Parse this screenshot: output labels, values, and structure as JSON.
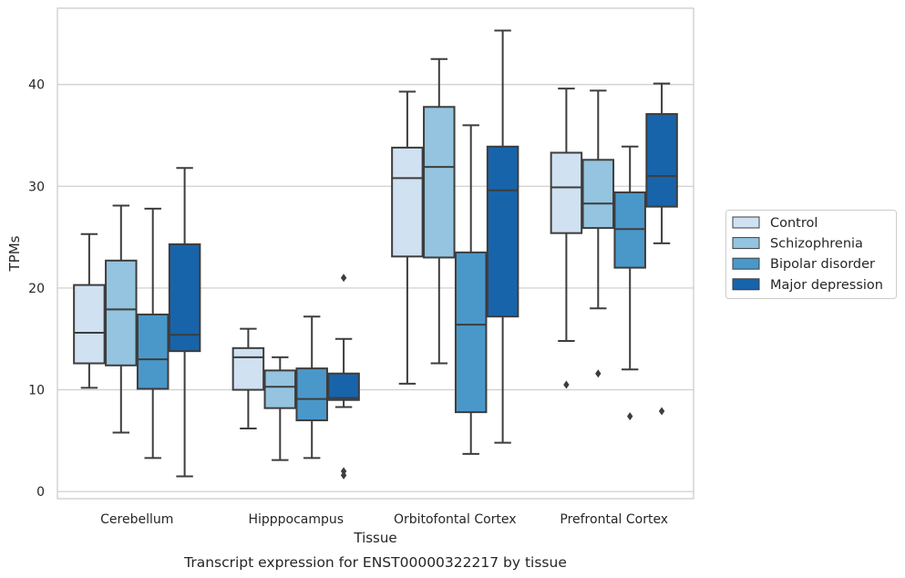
{
  "caption": "Transcript expression for ENST00000322217 by tissue",
  "chart_data": {
    "type": "box",
    "xlabel": "Tissue",
    "ylabel": "TPMs",
    "ylim": [
      -0.7,
      47.5
    ],
    "yticks": [
      0,
      10,
      20,
      30,
      40
    ],
    "grid": true,
    "legend_position": "right",
    "categories": [
      "Cerebellum",
      "Hipppocampus",
      "Orbitofontal Cortex",
      "Prefrontal Cortex"
    ],
    "series": [
      {
        "name": "Control",
        "color": "#d0e1f2",
        "boxes": [
          {
            "whislo": 10.2,
            "q1": 12.6,
            "med": 15.6,
            "q3": 20.3,
            "whishi": 25.3,
            "fliers": []
          },
          {
            "whislo": 6.2,
            "q1": 10.0,
            "med": 13.2,
            "q3": 14.1,
            "whishi": 16.0,
            "fliers": []
          },
          {
            "whislo": 10.6,
            "q1": 23.1,
            "med": 30.8,
            "q3": 33.8,
            "whishi": 39.3,
            "fliers": []
          },
          {
            "whislo": 14.8,
            "q1": 25.4,
            "med": 29.9,
            "q3": 33.3,
            "whishi": 39.6,
            "fliers": [
              10.5
            ]
          }
        ]
      },
      {
        "name": "Schizophrenia",
        "color": "#94c4df",
        "boxes": [
          {
            "whislo": 5.8,
            "q1": 12.4,
            "med": 17.9,
            "q3": 22.7,
            "whishi": 28.1,
            "fliers": []
          },
          {
            "whislo": 3.1,
            "q1": 8.2,
            "med": 10.3,
            "q3": 11.9,
            "whishi": 13.2,
            "fliers": []
          },
          {
            "whislo": 12.6,
            "q1": 23.0,
            "med": 31.9,
            "q3": 37.8,
            "whishi": 42.5,
            "fliers": []
          },
          {
            "whislo": 18.0,
            "q1": 25.9,
            "med": 28.3,
            "q3": 32.6,
            "whishi": 39.4,
            "fliers": [
              11.6
            ]
          }
        ]
      },
      {
        "name": "Bipolar disorder",
        "color": "#4a98c9",
        "boxes": [
          {
            "whislo": 3.3,
            "q1": 10.1,
            "med": 13.0,
            "q3": 17.4,
            "whishi": 27.8,
            "fliers": []
          },
          {
            "whislo": 3.3,
            "q1": 7.0,
            "med": 9.1,
            "q3": 12.1,
            "whishi": 17.2,
            "fliers": []
          },
          {
            "whislo": 3.7,
            "q1": 7.8,
            "med": 16.4,
            "q3": 23.5,
            "whishi": 36.0,
            "fliers": []
          },
          {
            "whislo": 12.0,
            "q1": 22.0,
            "med": 25.8,
            "q3": 29.4,
            "whishi": 33.9,
            "fliers": [
              7.4
            ]
          }
        ]
      },
      {
        "name": "Major depression",
        "color": "#1764ab",
        "boxes": [
          {
            "whislo": 1.5,
            "q1": 13.8,
            "med": 15.4,
            "q3": 24.3,
            "whishi": 31.8,
            "fliers": []
          },
          {
            "whislo": 8.3,
            "q1": 9.0,
            "med": 9.2,
            "q3": 11.6,
            "whishi": 15.0,
            "fliers": [
              21.0,
              2.0,
              1.6
            ]
          },
          {
            "whislo": 4.8,
            "q1": 17.2,
            "med": 29.6,
            "q3": 33.9,
            "whishi": 45.3,
            "fliers": []
          },
          {
            "whislo": 24.4,
            "q1": 28.0,
            "med": 31.0,
            "q3": 37.1,
            "whishi": 40.1,
            "fliers": [
              7.9
            ]
          }
        ]
      }
    ]
  }
}
